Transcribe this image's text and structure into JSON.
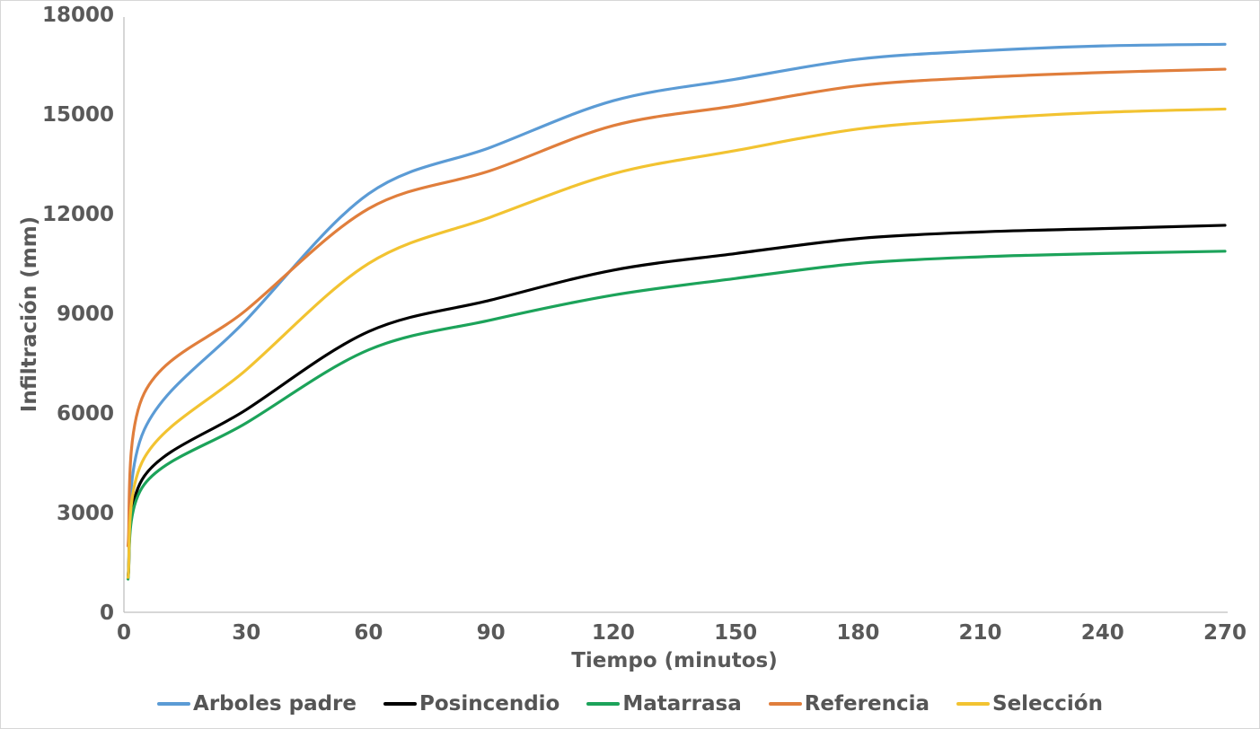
{
  "chart_data": {
    "type": "line",
    "title": "",
    "xlabel": "Tiempo (minutos)",
    "ylabel": "Infiltración (mm)",
    "xlim": [
      0,
      270
    ],
    "ylim": [
      0,
      18000
    ],
    "x_ticks": [
      0,
      30,
      60,
      90,
      120,
      150,
      180,
      210,
      240,
      270
    ],
    "y_ticks": [
      0,
      3000,
      6000,
      9000,
      12000,
      15000,
      18000
    ],
    "grid": false,
    "legend_position": "bottom",
    "axis_color": "#BFBFBF",
    "text_color": "#595959",
    "x": [
      1,
      5,
      30,
      60,
      90,
      120,
      150,
      180,
      210,
      240,
      270
    ],
    "series": [
      {
        "name": "Arboles padre",
        "color": "#5B9BD5",
        "values": [
          1100,
          5500,
          8800,
          12600,
          14000,
          15400,
          16050,
          16650,
          16900,
          17050,
          17100
        ]
      },
      {
        "name": "Posincendio",
        "color": "#000000",
        "values": [
          1050,
          4100,
          6100,
          8450,
          9400,
          10300,
          10800,
          11250,
          11450,
          11550,
          11650
        ]
      },
      {
        "name": "Matarrasa",
        "color": "#1CA35A",
        "values": [
          1000,
          3850,
          5700,
          7900,
          8800,
          9550,
          10050,
          10500,
          10700,
          10800,
          10870
        ]
      },
      {
        "name": "Referencia",
        "color": "#E07E3C",
        "values": [
          2000,
          6600,
          9100,
          12150,
          13300,
          14650,
          15250,
          15850,
          16100,
          16250,
          16350
        ]
      },
      {
        "name": "Selección",
        "color": "#F2C331",
        "values": [
          1050,
          4650,
          7300,
          10500,
          11900,
          13200,
          13900,
          14550,
          14850,
          15050,
          15150
        ]
      }
    ]
  }
}
